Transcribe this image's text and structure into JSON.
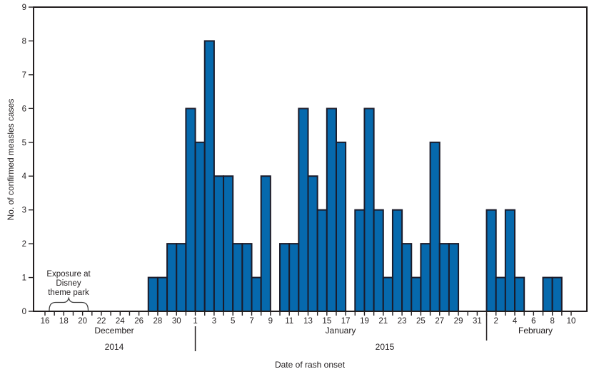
{
  "chart_data": {
    "type": "bar",
    "title": "",
    "xlabel": "Date of rash onset",
    "ylabel": "No. of confirmed measles cases",
    "ylim": [
      0,
      9
    ],
    "y_ticks": [
      0,
      1,
      2,
      3,
      4,
      5,
      6,
      7,
      8,
      9
    ],
    "grid": false,
    "legend": "none",
    "years": [
      "2014",
      "2015"
    ],
    "months": [
      {
        "label": "December",
        "start_day": 16,
        "end_day": 31,
        "tick_labels": [
          16,
          18,
          20,
          22,
          24,
          26,
          28,
          30
        ],
        "values": [
          0,
          0,
          0,
          0,
          0,
          0,
          0,
          0,
          0,
          0,
          0,
          1,
          1,
          2,
          2,
          6
        ]
      },
      {
        "label": "January",
        "start_day": 1,
        "end_day": 31,
        "tick_labels": [
          1,
          3,
          5,
          7,
          9,
          11,
          13,
          15,
          17,
          19,
          21,
          23,
          25,
          27,
          29,
          31
        ],
        "values": [
          5,
          8,
          4,
          4,
          2,
          2,
          1,
          4,
          0,
          2,
          2,
          6,
          4,
          3,
          6,
          5,
          0,
          3,
          6,
          3,
          1,
          3,
          2,
          1,
          2,
          5,
          2,
          2,
          0,
          0,
          0
        ]
      },
      {
        "label": "February",
        "start_day": 1,
        "end_day": 10,
        "tick_labels": [
          2,
          4,
          6,
          8,
          10
        ],
        "values": [
          3,
          1,
          3,
          1,
          0,
          0,
          1,
          1,
          0,
          0
        ]
      }
    ],
    "annotation": {
      "lines": [
        "Exposure at",
        "Disney",
        "theme park"
      ],
      "brace_month": "December",
      "brace_start_day": 16.45,
      "brace_end_day": 20.6
    },
    "colors": {
      "bar_fill": "#0669ad",
      "bar_stroke": "#1b1b2a",
      "axis": "#231f20",
      "brace": "#3c3c3c"
    }
  }
}
